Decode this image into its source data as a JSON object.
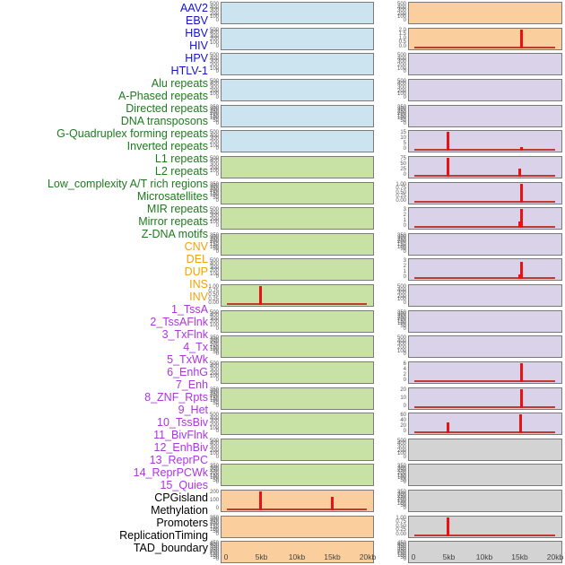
{
  "figure": {
    "description": "Genomic feature density tracks over a 0-20kb window, 44 tracks in two panel columns",
    "x_axis_ticks": [
      "0",
      "5kb",
      "10kb",
      "15kb",
      "20kb"
    ]
  },
  "colors": {
    "label": {
      "virus": "#1414CC",
      "repeat": "#1E7A1E",
      "sv": "#F2A20A",
      "chromatin": "#AB36DB",
      "other": "#000000"
    },
    "panel_bg": {
      "blue": "#CBE4EF",
      "green": "#C8E1A5",
      "orange": "#FBCF9D",
      "purple": "#D9D2E8",
      "gray": "#D3D3D3"
    },
    "spike_red": "#E91111",
    "baseline_red": "#C03A30",
    "panel_border": "#7a7a7a",
    "tick_text": "#555555",
    "axis_text": "#444444"
  },
  "chart_data": {
    "type": "bar",
    "layout": "small-multiples, 22 rows x 2 columns; tracks 1-22 in left column, 23-44 in right column",
    "x_range_kb": [
      0,
      20
    ],
    "x_ticks": [
      "0",
      "5kb",
      "10kb",
      "15kb",
      "20kb"
    ],
    "grid": false,
    "legend": false,
    "tracks": [
      {
        "name": "AAV2",
        "cat": "virus",
        "bg": "blue",
        "yticks": [
          "500",
          "400",
          "300",
          "200",
          "100",
          "0"
        ],
        "spikes": [],
        "baseline": false
      },
      {
        "name": "EBV",
        "cat": "virus",
        "bg": "blue",
        "yticks": [
          "500",
          "400",
          "300",
          "200",
          "100",
          "0"
        ],
        "spikes": [],
        "baseline": false
      },
      {
        "name": "HBV",
        "cat": "virus",
        "bg": "blue",
        "yticks": [
          "500",
          "400",
          "300",
          "200",
          "100",
          "0"
        ],
        "spikes": [],
        "baseline": false
      },
      {
        "name": "HIV",
        "cat": "virus",
        "bg": "blue",
        "yticks": [
          "500",
          "400",
          "300",
          "200",
          "100",
          "0"
        ],
        "spikes": [],
        "baseline": false
      },
      {
        "name": "HPV",
        "cat": "virus",
        "bg": "blue",
        "yticks": [
          "350",
          "300",
          "250",
          "200",
          "150",
          "100",
          "50",
          "0"
        ],
        "spikes": [],
        "baseline": false
      },
      {
        "name": "HTLV-1",
        "cat": "virus",
        "bg": "blue",
        "yticks": [
          "500",
          "400",
          "300",
          "200",
          "100",
          "0"
        ],
        "spikes": [],
        "baseline": false
      },
      {
        "name": "Alu repeats",
        "cat": "repeat",
        "bg": "green",
        "yticks": [
          "500",
          "400",
          "300",
          "200",
          "100",
          "0"
        ],
        "spikes": [],
        "baseline": false
      },
      {
        "name": "A-Phased repeats",
        "cat": "repeat",
        "bg": "green",
        "yticks": [
          "350",
          "300",
          "250",
          "200",
          "150",
          "100",
          "50",
          "0"
        ],
        "spikes": [],
        "baseline": false
      },
      {
        "name": "Directed repeats",
        "cat": "repeat",
        "bg": "green",
        "yticks": [
          "500",
          "400",
          "300",
          "200",
          "100",
          "0"
        ],
        "spikes": [],
        "baseline": false
      },
      {
        "name": "DNA transposons",
        "cat": "repeat",
        "bg": "green",
        "yticks": [
          "350",
          "300",
          "250",
          "200",
          "150",
          "100",
          "50",
          "0"
        ],
        "spikes": [],
        "baseline": false
      },
      {
        "name": "G-Quadruplex forming repeats",
        "cat": "repeat",
        "bg": "green",
        "yticks": [
          "500",
          "400",
          "300",
          "200",
          "100",
          "0"
        ],
        "spikes": [],
        "baseline": false
      },
      {
        "name": "Inverted repeats",
        "cat": "repeat",
        "bg": "green",
        "yticks": [
          "1.00",
          "0.75",
          "0.50",
          "0.25",
          "0.00"
        ],
        "spikes": [
          {
            "x_kb": 4.75,
            "value": 1.05,
            "f": 1.0
          }
        ],
        "baseline": true
      },
      {
        "name": "L1 repeats",
        "cat": "repeat",
        "bg": "green",
        "yticks": [
          "500",
          "400",
          "300",
          "200",
          "100",
          "0"
        ],
        "spikes": [],
        "baseline": false
      },
      {
        "name": "L2 repeats",
        "cat": "repeat",
        "bg": "green",
        "yticks": [
          "350",
          "300",
          "250",
          "200",
          "150",
          "100",
          "50",
          "0"
        ],
        "spikes": [],
        "baseline": false
      },
      {
        "name": "Low_complexity A/T rich regions",
        "cat": "repeat",
        "bg": "green",
        "yticks": [
          "500",
          "400",
          "300",
          "200",
          "100",
          "0"
        ],
        "spikes": [],
        "baseline": false
      },
      {
        "name": "Microsatellites",
        "cat": "repeat",
        "bg": "green",
        "yticks": [
          "350",
          "300",
          "250",
          "200",
          "150",
          "100",
          "50",
          "0"
        ],
        "spikes": [],
        "baseline": false
      },
      {
        "name": "MIR repeats",
        "cat": "repeat",
        "bg": "green",
        "yticks": [
          "500",
          "400",
          "300",
          "200",
          "100",
          "0"
        ],
        "spikes": [],
        "baseline": false
      },
      {
        "name": "Mirror repeats",
        "cat": "repeat",
        "bg": "green",
        "yticks": [
          "500",
          "400",
          "300",
          "200",
          "100",
          "0"
        ],
        "spikes": [],
        "baseline": false
      },
      {
        "name": "Z-DNA motifs",
        "cat": "repeat",
        "bg": "green",
        "yticks": [
          "350",
          "300",
          "250",
          "200",
          "150",
          "100",
          "50",
          "0"
        ],
        "spikes": [],
        "baseline": false
      },
      {
        "name": "CNV",
        "cat": "sv",
        "bg": "orange",
        "yticks": [
          "200",
          "100",
          "0"
        ],
        "spikes": [
          {
            "x_kb": 4.75,
            "value": 250,
            "f": 1.0
          },
          {
            "x_kb": 14.9,
            "value": 180,
            "f": 0.72
          }
        ],
        "baseline": true
      },
      {
        "name": "DEL",
        "cat": "sv",
        "bg": "orange",
        "yticks": [
          "350",
          "300",
          "250",
          "200",
          "150",
          "100",
          "50",
          "0"
        ],
        "spikes": [],
        "baseline": false
      },
      {
        "name": "DUP",
        "cat": "sv",
        "bg": "orange",
        "yticks": [
          "450",
          "400",
          "350",
          "300",
          "250",
          "200",
          "150",
          "100",
          "50",
          "0"
        ],
        "spikes": [],
        "baseline": false
      },
      {
        "name": "INS",
        "cat": "sv",
        "bg": "orange",
        "yticks": [
          "500",
          "400",
          "300",
          "200",
          "100",
          "0"
        ],
        "spikes": [],
        "baseline": false
      },
      {
        "name": "INV",
        "cat": "sv",
        "bg": "orange",
        "yticks": [
          "2.0",
          "1.5",
          "1.0",
          "0.5",
          "0.0"
        ],
        "spikes": [
          {
            "x_kb": 15.1,
            "value": 2.2,
            "f": 1.0
          }
        ],
        "baseline": true
      },
      {
        "name": "1_TssA",
        "cat": "chromatin",
        "bg": "purple",
        "yticks": [
          "500",
          "400",
          "300",
          "200",
          "100",
          "0"
        ],
        "spikes": [],
        "baseline": false
      },
      {
        "name": "2_TssAFlnk",
        "cat": "chromatin",
        "bg": "purple",
        "yticks": [
          "500",
          "400",
          "300",
          "200",
          "100",
          "0"
        ],
        "spikes": [],
        "baseline": false
      },
      {
        "name": "3_TxFlnk",
        "cat": "chromatin",
        "bg": "purple",
        "yticks": [
          "350",
          "300",
          "250",
          "200",
          "150",
          "100",
          "50",
          "0"
        ],
        "spikes": [],
        "baseline": false
      },
      {
        "name": "4_Tx",
        "cat": "chromatin",
        "bg": "purple",
        "yticks": [
          "15",
          "10",
          "5",
          "0"
        ],
        "spikes": [
          {
            "x_kb": 4.75,
            "value": 16,
            "f": 1.0
          },
          {
            "x_kb": 15.1,
            "value": 3,
            "f": 0.2
          }
        ],
        "baseline": true
      },
      {
        "name": "5_TxWk",
        "cat": "chromatin",
        "bg": "purple",
        "yticks": [
          "75",
          "50",
          "25",
          "0"
        ],
        "spikes": [
          {
            "x_kb": 4.75,
            "value": 85,
            "f": 1.0
          },
          {
            "x_kb": 14.9,
            "value": 30,
            "f": 0.4
          }
        ],
        "baseline": true
      },
      {
        "name": "6_EnhG",
        "cat": "chromatin",
        "bg": "purple",
        "yticks": [
          "1.00",
          "0.75",
          "0.50",
          "0.25",
          "0.00"
        ],
        "spikes": [
          {
            "x_kb": 15.1,
            "value": 1.05,
            "f": 1.0
          }
        ],
        "baseline": true
      },
      {
        "name": "7_Enh",
        "cat": "chromatin",
        "bg": "purple",
        "yticks": [
          "3",
          "2",
          "1",
          "0"
        ],
        "spikes": [
          {
            "x_kb": 14.8,
            "value": 1.1,
            "f": 0.35,
            "w": 2
          },
          {
            "x_kb": 15.15,
            "value": 3.4,
            "f": 1.0
          }
        ],
        "baseline": true
      },
      {
        "name": "8_ZNF_Rpts",
        "cat": "chromatin",
        "bg": "purple",
        "yticks": [
          "350",
          "300",
          "250",
          "200",
          "150",
          "100",
          "50",
          "0"
        ],
        "spikes": [],
        "baseline": false
      },
      {
        "name": "9_Het",
        "cat": "chromatin",
        "bg": "purple",
        "yticks": [
          "3",
          "2",
          "1",
          "0"
        ],
        "spikes": [
          {
            "x_kb": 14.8,
            "value": 0.8,
            "f": 0.25,
            "w": 2
          },
          {
            "x_kb": 15.15,
            "value": 2.9,
            "f": 0.93
          }
        ],
        "baseline": true
      },
      {
        "name": "10_TssBiv",
        "cat": "chromatin",
        "bg": "purple",
        "yticks": [
          "500",
          "400",
          "300",
          "200",
          "100",
          "0"
        ],
        "spikes": [],
        "baseline": false
      },
      {
        "name": "11_BivFlnk",
        "cat": "chromatin",
        "bg": "purple",
        "yticks": [
          "350",
          "300",
          "250",
          "200",
          "150",
          "100",
          "50",
          "0"
        ],
        "spikes": [],
        "baseline": false
      },
      {
        "name": "12_EnhBiv",
        "cat": "chromatin",
        "bg": "purple",
        "yticks": [
          "500",
          "400",
          "300",
          "200",
          "100",
          "0"
        ],
        "spikes": [],
        "baseline": false
      },
      {
        "name": "13_ReprPC",
        "cat": "chromatin",
        "bg": "purple",
        "yticks": [
          "6",
          "4",
          "2",
          "0"
        ],
        "spikes": [
          {
            "x_kb": 15.1,
            "value": 6.5,
            "f": 1.0
          }
        ],
        "baseline": true
      },
      {
        "name": "14_ReprPCWk",
        "cat": "chromatin",
        "bg": "purple",
        "yticks": [
          "20",
          "10",
          "0"
        ],
        "spikes": [
          {
            "x_kb": 15.1,
            "value": 27,
            "f": 1.0
          }
        ],
        "baseline": true
      },
      {
        "name": "15_Quies",
        "cat": "chromatin",
        "bg": "purple",
        "yticks": [
          "60",
          "40",
          "20",
          "0"
        ],
        "spikes": [
          {
            "x_kb": 4.75,
            "value": 38,
            "f": 0.57
          },
          {
            "x_kb": 15.0,
            "value": 65,
            "f": 1.0
          }
        ],
        "baseline": true
      },
      {
        "name": "CPGisland",
        "cat": "other",
        "bg": "gray",
        "yticks": [
          "500",
          "400",
          "300",
          "200",
          "100",
          "0"
        ],
        "spikes": [],
        "baseline": false
      },
      {
        "name": "Methylation",
        "cat": "other",
        "bg": "gray",
        "yticks": [
          "350",
          "300",
          "250",
          "200",
          "150",
          "100",
          "50",
          "0"
        ],
        "spikes": [],
        "baseline": false
      },
      {
        "name": "Promoters",
        "cat": "other",
        "bg": "gray",
        "yticks": [
          "350",
          "300",
          "250",
          "200",
          "150",
          "100",
          "50",
          "0"
        ],
        "spikes": [],
        "baseline": false
      },
      {
        "name": "ReplicationTiming",
        "cat": "other",
        "bg": "gray",
        "yticks": [
          "1.00",
          "0.75",
          "0.50",
          "0.25",
          "0.00"
        ],
        "spikes": [
          {
            "x_kb": 4.75,
            "value": 1.05,
            "f": 1.0
          }
        ],
        "baseline": true
      },
      {
        "name": "TAD_boundary",
        "cat": "other",
        "bg": "gray",
        "yticks": [
          "450",
          "400",
          "350",
          "300",
          "250",
          "200",
          "150",
          "100",
          "50",
          "0"
        ],
        "spikes": [],
        "baseline": false
      }
    ]
  }
}
